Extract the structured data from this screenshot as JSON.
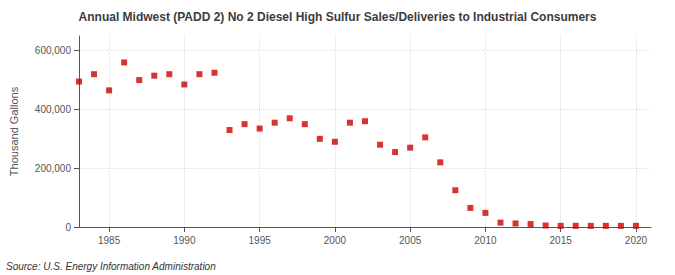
{
  "chart_data": {
    "type": "scatter",
    "title": "Annual Midwest (PADD 2) No 2 Diesel High Sulfur Sales/Deliveries to Industrial Consumers",
    "ylabel": "Thousand Gallons",
    "annotation": "Source: U.S. Energy Information Administration",
    "x": [
      1983,
      1984,
      1985,
      1986,
      1987,
      1988,
      1989,
      1990,
      1991,
      1992,
      1993,
      1994,
      1995,
      1996,
      1997,
      1998,
      1999,
      2000,
      2001,
      2002,
      2003,
      2004,
      2005,
      2006,
      2007,
      2008,
      2009,
      2010,
      2011,
      2012,
      2013,
      2014,
      2015,
      2016,
      2017,
      2018,
      2019,
      2020
    ],
    "values": [
      495000,
      520000,
      465000,
      560000,
      500000,
      515000,
      520000,
      485000,
      520000,
      525000,
      330000,
      350000,
      335000,
      355000,
      370000,
      350000,
      300000,
      290000,
      355000,
      360000,
      280000,
      255000,
      270000,
      305000,
      220000,
      125000,
      65000,
      48000,
      15000,
      12000,
      10000,
      5000,
      4000,
      4000,
      4000,
      4000,
      4000,
      4000
    ],
    "color": "#cc0000",
    "marker": "square",
    "xlim": [
      1983,
      2021
    ],
    "ylim": [
      0,
      650000
    ],
    "xticks": [
      1985,
      1990,
      1995,
      2000,
      2005,
      2010,
      2015,
      2020
    ],
    "yticks": [
      0,
      {
        "value": 200000,
        "label": "200,000"
      },
      {
        "value": 400000,
        "label": "400,000"
      },
      {
        "value": 600000,
        "label": "600,000"
      }
    ],
    "grid": true
  }
}
